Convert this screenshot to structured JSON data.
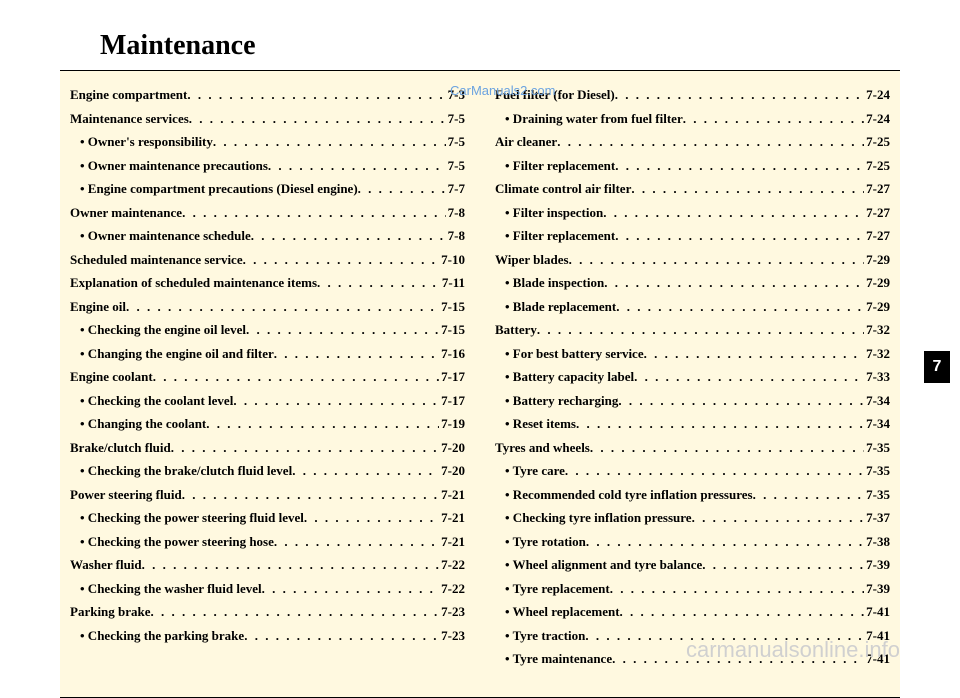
{
  "title": "Maintenance",
  "watermark_top": "CarManuals2.com",
  "watermark_bottom": "carmanualsonline.info",
  "tab_number": "7",
  "colors": {
    "content_bg": "#fff9e0",
    "watermark_top": "#6ba3e0",
    "watermark_bottom": "#d0d0d0"
  },
  "column_left": [
    {
      "label": "Engine compartment",
      "page": "7-3",
      "type": "main"
    },
    {
      "label": "Maintenance services",
      "page": "7-5",
      "type": "main"
    },
    {
      "label": "• Owner's responsibility",
      "page": "7-5",
      "type": "sub"
    },
    {
      "label": "• Owner maintenance precautions",
      "page": "7-5",
      "type": "sub"
    },
    {
      "label": "• Engine compartment precautions (Diesel engine)",
      "page": "7-7",
      "type": "sub"
    },
    {
      "label": "Owner maintenance",
      "page": "7-8",
      "type": "main"
    },
    {
      "label": "• Owner maintenance schedule",
      "page": "7-8",
      "type": "sub"
    },
    {
      "label": "Scheduled maintenance service",
      "page": "7-10",
      "type": "main"
    },
    {
      "label": "Explanation of scheduled maintenance items",
      "page": "7-11",
      "type": "main"
    },
    {
      "label": "Engine oil",
      "page": "7-15",
      "type": "main"
    },
    {
      "label": "• Checking the engine oil level",
      "page": "7-15",
      "type": "sub"
    },
    {
      "label": "• Changing the engine oil and filter",
      "page": "7-16",
      "type": "sub"
    },
    {
      "label": "Engine coolant",
      "page": "7-17",
      "type": "main"
    },
    {
      "label": "• Checking the coolant level",
      "page": "7-17",
      "type": "sub"
    },
    {
      "label": "• Changing the coolant",
      "page": "7-19",
      "type": "sub"
    },
    {
      "label": "Brake/clutch fluid",
      "page": "7-20",
      "type": "main"
    },
    {
      "label": "• Checking the brake/clutch fluid level",
      "page": "7-20",
      "type": "sub"
    },
    {
      "label": "Power steering fluid",
      "page": "7-21",
      "type": "main"
    },
    {
      "label": "• Checking the power steering fluid level",
      "page": "7-21",
      "type": "sub"
    },
    {
      "label": "• Checking the power steering hose",
      "page": "7-21",
      "type": "sub"
    },
    {
      "label": "Washer fluid",
      "page": "7-22",
      "type": "main"
    },
    {
      "label": "• Checking the washer fluid level",
      "page": "7-22",
      "type": "sub"
    },
    {
      "label": "Parking brake",
      "page": "7-23",
      "type": "main"
    },
    {
      "label": "• Checking the parking brake",
      "page": "7-23",
      "type": "sub"
    }
  ],
  "column_right": [
    {
      "label": "Fuel filter (for Diesel)",
      "page": "7-24",
      "type": "main"
    },
    {
      "label": "• Draining water from fuel filter",
      "page": "7-24",
      "type": "sub"
    },
    {
      "label": "Air cleaner",
      "page": "7-25",
      "type": "main"
    },
    {
      "label": "• Filter replacement",
      "page": "7-25",
      "type": "sub"
    },
    {
      "label": "Climate control air filter",
      "page": "7-27",
      "type": "main"
    },
    {
      "label": "• Filter inspection",
      "page": "7-27",
      "type": "sub"
    },
    {
      "label": "• Filter replacement",
      "page": "7-27",
      "type": "sub"
    },
    {
      "label": "Wiper blades",
      "page": "7-29",
      "type": "main"
    },
    {
      "label": "• Blade inspection",
      "page": "7-29",
      "type": "sub"
    },
    {
      "label": "• Blade replacement",
      "page": "7-29",
      "type": "sub"
    },
    {
      "label": "Battery",
      "page": "7-32",
      "type": "main"
    },
    {
      "label": "• For best battery service",
      "page": "7-32",
      "type": "sub"
    },
    {
      "label": "• Battery capacity label",
      "page": "7-33",
      "type": "sub"
    },
    {
      "label": "• Battery recharging",
      "page": "7-34",
      "type": "sub"
    },
    {
      "label": "• Reset items",
      "page": "7-34",
      "type": "sub"
    },
    {
      "label": "Tyres and wheels",
      "page": "7-35",
      "type": "main"
    },
    {
      "label": "• Tyre care",
      "page": "7-35",
      "type": "sub"
    },
    {
      "label": "• Recommended cold tyre inflation pressures",
      "page": "7-35",
      "type": "sub"
    },
    {
      "label": "• Checking tyre inflation pressure",
      "page": "7-37",
      "type": "sub"
    },
    {
      "label": "• Tyre rotation",
      "page": "7-38",
      "type": "sub"
    },
    {
      "label": "• Wheel alignment and tyre balance",
      "page": "7-39",
      "type": "sub"
    },
    {
      "label": "• Tyre replacement",
      "page": "7-39",
      "type": "sub"
    },
    {
      "label": "• Wheel replacement",
      "page": "7-41",
      "type": "sub"
    },
    {
      "label": "• Tyre traction",
      "page": "7-41",
      "type": "sub"
    },
    {
      "label": "• Tyre maintenance",
      "page": "7-41",
      "type": "sub"
    }
  ]
}
